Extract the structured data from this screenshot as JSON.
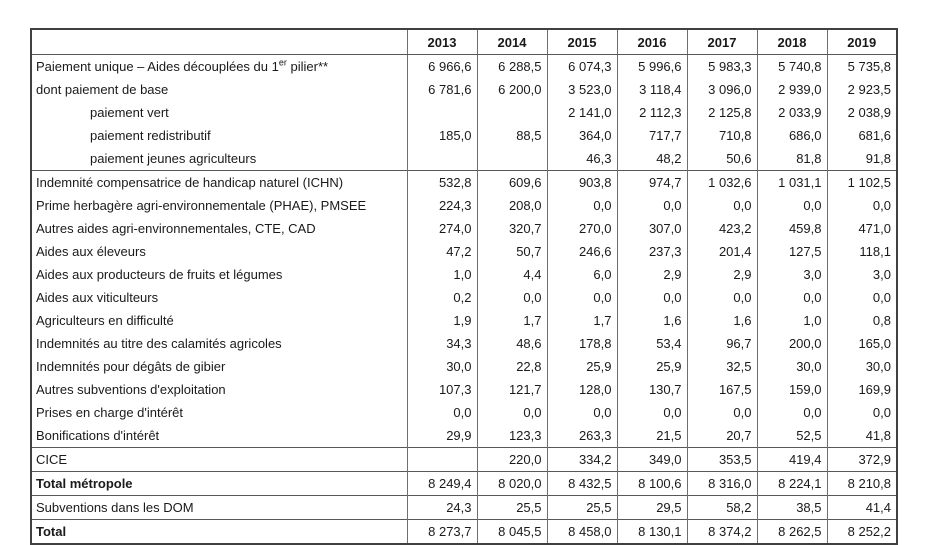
{
  "table": {
    "columns": [
      "2013",
      "2014",
      "2015",
      "2016",
      "2017",
      "2018",
      "2019"
    ],
    "rows": [
      {
        "label_prefix": "Paiement unique – Aides découplées du 1",
        "label_sup": "er",
        "label_suffix": " pilier**",
        "indent": 0,
        "bold": false,
        "values": [
          "6 966,6",
          "6 288,5",
          "6 074,3",
          "5 996,6",
          "5 983,3",
          "5 740,8",
          "5 735,8"
        ]
      },
      {
        "label": "dont paiement de base",
        "indent": 0,
        "bold": false,
        "values": [
          "6 781,6",
          "6 200,0",
          "3 523,0",
          "3 118,4",
          "3 096,0",
          "2 939,0",
          "2 923,5"
        ]
      },
      {
        "label": "paiement vert",
        "indent": 1,
        "bold": false,
        "values": [
          "",
          "",
          "2 141,0",
          "2 112,3",
          "2 125,8",
          "2 033,9",
          "2 038,9"
        ]
      },
      {
        "label": "paiement redistributif",
        "indent": 1,
        "bold": false,
        "values": [
          "185,0",
          "88,5",
          "364,0",
          "717,7",
          "710,8",
          "686,0",
          "681,6"
        ]
      },
      {
        "label": "paiement jeunes agriculteurs",
        "indent": 1,
        "bold": false,
        "values": [
          "",
          "",
          "46,3",
          "48,2",
          "50,6",
          "81,8",
          "91,8"
        ]
      },
      {
        "label": "Indemnité compensatrice de handicap naturel (ICHN)",
        "indent": 0,
        "bold": false,
        "values": [
          "532,8",
          "609,6",
          "903,8",
          "974,7",
          "1 032,6",
          "1 031,1",
          "1 102,5"
        ]
      },
      {
        "label": "Prime herbagère agri-environnementale (PHAE), PMSEE",
        "indent": 0,
        "bold": false,
        "values": [
          "224,3",
          "208,0",
          "0,0",
          "0,0",
          "0,0",
          "0,0",
          "0,0"
        ]
      },
      {
        "label": "Autres aides agri-environnementales, CTE, CAD",
        "indent": 0,
        "bold": false,
        "values": [
          "274,0",
          "320,7",
          "270,0",
          "307,0",
          "423,2",
          "459,8",
          "471,0"
        ]
      },
      {
        "label": "Aides aux éleveurs",
        "indent": 0,
        "bold": false,
        "values": [
          "47,2",
          "50,7",
          "246,6",
          "237,3",
          "201,4",
          "127,5",
          "118,1"
        ]
      },
      {
        "label": "Aides aux producteurs de fruits et légumes",
        "indent": 0,
        "bold": false,
        "values": [
          "1,0",
          "4,4",
          "6,0",
          "2,9",
          "2,9",
          "3,0",
          "3,0"
        ]
      },
      {
        "label": "Aides aux viticulteurs",
        "indent": 0,
        "bold": false,
        "values": [
          "0,2",
          "0,0",
          "0,0",
          "0,0",
          "0,0",
          "0,0",
          "0,0"
        ]
      },
      {
        "label": "Agriculteurs en difficulté",
        "indent": 0,
        "bold": false,
        "values": [
          "1,9",
          "1,7",
          "1,7",
          "1,6",
          "1,6",
          "1,0",
          "0,8"
        ]
      },
      {
        "label": "Indemnités au titre des calamités agricoles",
        "indent": 0,
        "bold": false,
        "values": [
          "34,3",
          "48,6",
          "178,8",
          "53,4",
          "96,7",
          "200,0",
          "165,0"
        ]
      },
      {
        "label": "Indemnités pour dégâts de gibier",
        "indent": 0,
        "bold": false,
        "values": [
          "30,0",
          "22,8",
          "25,9",
          "25,9",
          "32,5",
          "30,0",
          "30,0"
        ]
      },
      {
        "label": "Autres subventions d'exploitation",
        "indent": 0,
        "bold": false,
        "values": [
          "107,3",
          "121,7",
          "128,0",
          "130,7",
          "167,5",
          "159,0",
          "169,9"
        ]
      },
      {
        "label": "Prises en charge d'intérêt",
        "indent": 0,
        "bold": false,
        "values": [
          "0,0",
          "0,0",
          "0,0",
          "0,0",
          "0,0",
          "0,0",
          "0,0"
        ]
      },
      {
        "label": "Bonifications d'intérêt",
        "indent": 0,
        "bold": false,
        "values": [
          "29,9",
          "123,3",
          "263,3",
          "21,5",
          "20,7",
          "52,5",
          "41,8"
        ]
      },
      {
        "label": "CICE",
        "indent": 0,
        "bold": false,
        "values": [
          "",
          "220,0",
          "334,2",
          "349,0",
          "353,5",
          "419,4",
          "372,9"
        ]
      },
      {
        "label": "Total métropole",
        "indent": 0,
        "bold": true,
        "values": [
          "8 249,4",
          "8 020,0",
          "8 432,5",
          "8 100,6",
          "8 316,0",
          "8 224,1",
          "8 210,8"
        ]
      },
      {
        "label": "Subventions dans les DOM",
        "indent": 0,
        "bold": false,
        "values": [
          "24,3",
          "25,5",
          "25,5",
          "29,5",
          "58,2",
          "38,5",
          "41,4"
        ]
      },
      {
        "label": "Total",
        "indent": 0,
        "bold": true,
        "values": [
          "8 273,7",
          "8 045,5",
          "8 458,0",
          "8 130,1",
          "8 374,2",
          "8 262,5",
          "8 252,2"
        ]
      }
    ]
  }
}
